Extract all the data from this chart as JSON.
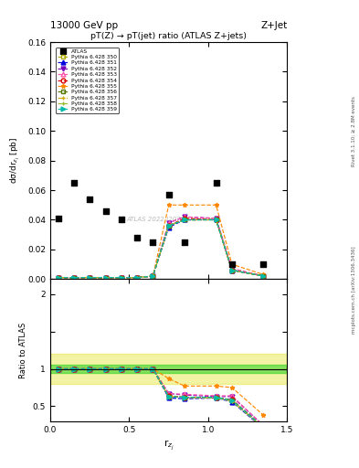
{
  "title_top": "13000 GeV pp",
  "title_right": "Z+Jet",
  "plot_title": "pT(Z) → pT(jet) ratio (ATLAS Z+jets)",
  "ylabel_main": "dσ/dr$_{z_j}$ [pb]",
  "ylabel_ratio": "Ratio to ATLAS",
  "xlabel": "r$_{z_j}$",
  "right_label_top": "Rivet 3.1.10; ≥ 2.8M events",
  "right_label_bottom": "mcplots.cern.ch [arXiv:1306.3436]",
  "watermark": "ATLAS 2022 I2077570",
  "atlas_x": [
    0.05,
    0.15,
    0.25,
    0.35,
    0.45,
    0.55,
    0.65,
    0.75,
    0.85,
    1.05,
    1.15,
    1.35
  ],
  "atlas_y": [
    0.041,
    0.065,
    0.054,
    0.046,
    0.04,
    0.028,
    0.025,
    0.057,
    0.025,
    0.065,
    0.01,
    0.01
  ],
  "mc_x": [
    0.05,
    0.15,
    0.25,
    0.35,
    0.45,
    0.55,
    0.65,
    0.75,
    0.85,
    1.05,
    1.15,
    1.35
  ],
  "mc_y_350": [
    0.001,
    0.001,
    0.001,
    0.001,
    0.001,
    0.001,
    0.002,
    0.036,
    0.04,
    0.04,
    0.006,
    0.002
  ],
  "mc_y_351": [
    0.001,
    0.001,
    0.001,
    0.001,
    0.001,
    0.001,
    0.002,
    0.035,
    0.04,
    0.04,
    0.006,
    0.002
  ],
  "mc_y_352": [
    0.001,
    0.001,
    0.001,
    0.001,
    0.001,
    0.001,
    0.002,
    0.038,
    0.042,
    0.041,
    0.007,
    0.002
  ],
  "mc_y_353": [
    0.001,
    0.001,
    0.001,
    0.001,
    0.001,
    0.001,
    0.002,
    0.038,
    0.042,
    0.041,
    0.007,
    0.002
  ],
  "mc_y_354": [
    0.001,
    0.001,
    0.001,
    0.001,
    0.001,
    0.001,
    0.002,
    0.036,
    0.041,
    0.04,
    0.006,
    0.002
  ],
  "mc_y_355": [
    0.001,
    0.001,
    0.001,
    0.001,
    0.001,
    0.001,
    0.002,
    0.05,
    0.05,
    0.05,
    0.01,
    0.003
  ],
  "mc_y_356": [
    0.001,
    0.001,
    0.001,
    0.001,
    0.001,
    0.001,
    0.002,
    0.036,
    0.04,
    0.04,
    0.006,
    0.002
  ],
  "mc_y_357": [
    0.001,
    0.001,
    0.001,
    0.001,
    0.001,
    0.001,
    0.002,
    0.036,
    0.04,
    0.04,
    0.006,
    0.002
  ],
  "mc_y_358": [
    0.001,
    0.001,
    0.001,
    0.001,
    0.001,
    0.001,
    0.002,
    0.036,
    0.04,
    0.04,
    0.006,
    0.002
  ],
  "mc_y_359": [
    0.001,
    0.001,
    0.001,
    0.001,
    0.001,
    0.001,
    0.002,
    0.036,
    0.04,
    0.04,
    0.006,
    0.002
  ],
  "ratio_x": [
    0.05,
    0.15,
    0.25,
    0.35,
    0.45,
    0.55,
    0.65,
    0.75,
    0.85,
    1.05,
    1.15,
    1.35
  ],
  "ratio_350": [
    1.0,
    1.0,
    1.0,
    1.0,
    1.0,
    1.0,
    1.0,
    0.63,
    0.62,
    0.62,
    0.58,
    0.22
  ],
  "ratio_351": [
    1.0,
    1.0,
    1.0,
    1.0,
    1.0,
    1.0,
    1.0,
    0.61,
    0.6,
    0.61,
    0.56,
    0.2
  ],
  "ratio_352": [
    1.0,
    1.0,
    1.0,
    1.0,
    1.0,
    1.0,
    1.0,
    0.67,
    0.65,
    0.63,
    0.63,
    0.24
  ],
  "ratio_353": [
    1.0,
    1.0,
    1.0,
    1.0,
    1.0,
    1.0,
    1.0,
    0.67,
    0.66,
    0.64,
    0.64,
    0.24
  ],
  "ratio_354": [
    1.0,
    1.0,
    1.0,
    1.0,
    1.0,
    1.0,
    1.0,
    0.64,
    0.62,
    0.61,
    0.59,
    0.22
  ],
  "ratio_355": [
    1.0,
    1.0,
    1.0,
    1.0,
    1.0,
    1.0,
    1.0,
    0.87,
    0.77,
    0.77,
    0.75,
    0.38
  ],
  "ratio_356": [
    1.0,
    1.0,
    1.0,
    1.0,
    1.0,
    1.0,
    1.0,
    0.63,
    0.62,
    0.62,
    0.58,
    0.22
  ],
  "ratio_357": [
    1.0,
    1.0,
    1.0,
    1.0,
    1.0,
    1.0,
    1.0,
    0.63,
    0.62,
    0.61,
    0.57,
    0.21
  ],
  "ratio_358": [
    1.0,
    1.0,
    1.0,
    1.0,
    1.0,
    1.0,
    1.0,
    0.63,
    0.62,
    0.61,
    0.57,
    0.21
  ],
  "ratio_359": [
    1.0,
    1.0,
    1.0,
    1.0,
    1.0,
    1.0,
    1.0,
    0.63,
    0.62,
    0.62,
    0.58,
    0.22
  ],
  "green_band": [
    0.95,
    1.05
  ],
  "yellow_band": [
    0.8,
    1.2
  ],
  "ylim_main": [
    0.0,
    0.16
  ],
  "ylim_ratio": [
    0.3,
    2.2
  ],
  "xlim": [
    0.0,
    1.5
  ],
  "series_styles": [
    {
      "key": "350",
      "label": "Pythia 6.428 350",
      "color": "#aaaa00",
      "ls": "--",
      "marker": "s",
      "mfc": "none"
    },
    {
      "key": "351",
      "label": "Pythia 6.428 351",
      "color": "#0000dd",
      "ls": "--",
      "marker": "^",
      "mfc": "#0000dd"
    },
    {
      "key": "352",
      "label": "Pythia 6.428 352",
      "color": "#7700bb",
      "ls": "--",
      "marker": "v",
      "mfc": "#7700bb"
    },
    {
      "key": "353",
      "label": "Pythia 6.428 353",
      "color": "#ff55aa",
      "ls": "--",
      "marker": "^",
      "mfc": "none"
    },
    {
      "key": "354",
      "label": "Pythia 6.428 354",
      "color": "#dd0000",
      "ls": "--",
      "marker": "o",
      "mfc": "none"
    },
    {
      "key": "355",
      "label": "Pythia 6.428 355",
      "color": "#ff8800",
      "ls": "--",
      "marker": "*",
      "mfc": "#ff8800"
    },
    {
      "key": "356",
      "label": "Pythia 6.428 356",
      "color": "#557700",
      "ls": "--",
      "marker": "s",
      "mfc": "none"
    },
    {
      "key": "357",
      "label": "Pythia 6.428 357",
      "color": "#ccaa00",
      "ls": "-.",
      "marker": "+",
      "mfc": "#ccaa00"
    },
    {
      "key": "358",
      "label": "Pythia 6.428 358",
      "color": "#99bb33",
      "ls": "--",
      "marker": "+",
      "mfc": "#99bb33"
    },
    {
      "key": "359",
      "label": "Pythia 6.428 359",
      "color": "#00bbaa",
      "ls": "--",
      "marker": ">",
      "mfc": "#00bbaa"
    }
  ]
}
